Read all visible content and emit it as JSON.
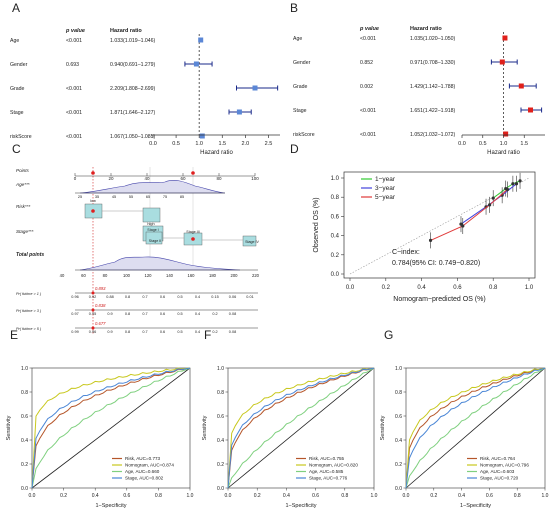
{
  "panel_letters": [
    "A",
    "B",
    "C",
    "D",
    "E",
    "F",
    "G"
  ],
  "forest_headers": {
    "p": "p value",
    "hr": "Hazard ratio"
  },
  "chart_data": [
    {
      "panel": "A",
      "type": "forest",
      "xlabel": "Hazard ratio",
      "xticks": [
        "0.0",
        "0.5",
        "1.0",
        "1.5",
        "2.0",
        "2.5"
      ],
      "xlim": [
        0,
        2.75
      ],
      "ref": 1,
      "rows": [
        {
          "label": "Age",
          "p": "<0.001",
          "hr_text": "1.033(1.019–1.046)",
          "hr": 1.033,
          "lo": 1.019,
          "hi": 1.046
        },
        {
          "label": "Gender",
          "p": "0.693",
          "hr_text": "0.940(0.691–1.279)",
          "hr": 0.94,
          "lo": 0.691,
          "hi": 1.279
        },
        {
          "label": "Grade",
          "p": "<0.001",
          "hr_text": "2.209(1.808–2.699)",
          "hr": 2.209,
          "lo": 1.808,
          "hi": 2.699
        },
        {
          "label": "Stage",
          "p": "<0.001",
          "hr_text": "1.871(1.646–2.127)",
          "hr": 1.871,
          "lo": 1.646,
          "hi": 2.127
        },
        {
          "label": "riskScore",
          "p": "<0.001",
          "hr_text": "1.067(1.050–1.085)",
          "hr": 1.067,
          "lo": 1.05,
          "hi": 1.085
        }
      ],
      "marker_color": "#5b87d6"
    },
    {
      "panel": "B",
      "type": "forest",
      "xlabel": "Hazard ratio",
      "xticks": [
        "0.0",
        "0.5",
        "1.0",
        "1.5"
      ],
      "xlim": [
        0,
        2.0
      ],
      "ref": 1,
      "rows": [
        {
          "label": "Age",
          "p": "<0.001",
          "hr_text": "1.035(1.020–1.050)",
          "hr": 1.035,
          "lo": 1.02,
          "hi": 1.05
        },
        {
          "label": "Gender",
          "p": "0.852",
          "hr_text": "0.971(0.708–1.330)",
          "hr": 0.971,
          "lo": 0.708,
          "hi": 1.33
        },
        {
          "label": "Grade",
          "p": "0.002",
          "hr_text": "1.429(1.142–1.788)",
          "hr": 1.429,
          "lo": 1.142,
          "hi": 1.788
        },
        {
          "label": "Stage",
          "p": "<0.001",
          "hr_text": "1.651(1.422–1.918)",
          "hr": 1.651,
          "lo": 1.422,
          "hi": 1.918
        },
        {
          "label": "riskScore",
          "p": "<0.001",
          "hr_text": "1.052(1.032–1.072)",
          "hr": 1.052,
          "lo": 1.032,
          "hi": 1.072
        }
      ],
      "marker_color": "#e0201b"
    },
    {
      "panel": "C",
      "type": "nomogram",
      "rows": {
        "points": "Points",
        "age": "Age***",
        "risk": "Risk***",
        "stage": "Stage***",
        "total": "Total points",
        "p1": "Pr( futime > 1 )",
        "p3": "Pr( futime > 3 )",
        "p5": "Pr( futime > 5 )"
      },
      "points_ticks": [
        "0",
        "20",
        "40",
        "60",
        "80",
        "100"
      ],
      "age_ticks": [
        "25",
        "35",
        "45",
        "55",
        "65",
        "75",
        "85"
      ],
      "risk_labels": [
        "low",
        "high"
      ],
      "stage_labels": [
        "Stage I",
        "Stage II",
        "Stage III",
        "Stage IV"
      ],
      "total_ticks": [
        "40",
        "60",
        "80",
        "100",
        "120",
        "140",
        "160",
        "180",
        "200",
        "220"
      ],
      "p1_ticks": [
        "0.96",
        "0.92",
        "0.88",
        "0.8",
        "0.7",
        "0.6",
        "0.5",
        "0.4",
        "0.15",
        "0.06",
        "0.01"
      ],
      "p3_ticks": [
        "0.97",
        "0.95",
        "0.9",
        "0.8",
        "0.7",
        "0.6",
        "0.5",
        "0.4",
        "0.2",
        "0.08"
      ],
      "p5_ticks": [
        "0.99",
        "0.96",
        "0.9",
        "0.8",
        "0.7",
        "0.6",
        "0.5",
        "0.4",
        "0.2",
        "0.08"
      ],
      "predicted": [
        "0.893",
        "0.838",
        "0.677"
      ]
    },
    {
      "panel": "D",
      "type": "calibration",
      "xlabel": "Nomogram−predicted OS (%)",
      "ylabel": "Observed OS (%)",
      "ticks": [
        "0.0",
        "0.2",
        "0.4",
        "0.6",
        "0.8",
        "1.0"
      ],
      "cindex_label": "C−index:",
      "cindex": "0.784(95% CI: 0.749−0.820)",
      "series": [
        {
          "name": "1−year",
          "color": "#33cc33",
          "points": [
            [
              0.8,
              0.79
            ],
            [
              0.87,
              0.89
            ],
            [
              0.91,
              0.94
            ],
            [
              0.95,
              0.97
            ]
          ]
        },
        {
          "name": "3−year",
          "color": "#4444dd",
          "points": [
            [
              0.62,
              0.52
            ],
            [
              0.76,
              0.7
            ],
            [
              0.85,
              0.82
            ],
            [
              0.93,
              0.94
            ]
          ]
        },
        {
          "name": "5−year",
          "color": "#e03a3a",
          "points": [
            [
              0.45,
              0.35
            ],
            [
              0.63,
              0.5
            ],
            [
              0.78,
              0.72
            ],
            [
              0.88,
              0.88
            ]
          ]
        }
      ]
    },
    {
      "panel": "E",
      "type": "roc",
      "xlabel": "1−Specificity",
      "ylabel": "Sensitivity",
      "ticks": [
        "0.0",
        "0.2",
        "0.4",
        "0.6",
        "0.8",
        "1.0"
      ],
      "series": [
        {
          "name": "Risk, AUC=0.773",
          "color": "#b5562a",
          "auc": 0.773
        },
        {
          "name": "Nomogram, AUC=0.874",
          "color": "#c8c81e",
          "auc": 0.874
        },
        {
          "name": "Age, AUC=0.660",
          "color": "#7fd07f",
          "auc": 0.66
        },
        {
          "name": "Stage, AUC=0.802",
          "color": "#4a86d6",
          "auc": 0.802
        }
      ]
    },
    {
      "panel": "F",
      "type": "roc",
      "xlabel": "1−Specificity",
      "ylabel": "Sensitivity",
      "ticks": [
        "0.0",
        "0.2",
        "0.4",
        "0.6",
        "0.8",
        "1.0"
      ],
      "series": [
        {
          "name": "Risk, AUC=0.755",
          "color": "#b5562a",
          "auc": 0.755
        },
        {
          "name": "Nomogram, AUC=0.820",
          "color": "#c8c81e",
          "auc": 0.82
        },
        {
          "name": "Age, AUC=0.585",
          "color": "#7fd07f",
          "auc": 0.585
        },
        {
          "name": "Stage, AUC=0.776",
          "color": "#4a86d6",
          "auc": 0.776
        }
      ]
    },
    {
      "panel": "G",
      "type": "roc",
      "xlabel": "1−Specificity",
      "ylabel": "Sensitivity",
      "ticks": [
        "0.0",
        "0.2",
        "0.4",
        "0.6",
        "0.8",
        "1.0"
      ],
      "series": [
        {
          "name": "Risk, AUC=0.764",
          "color": "#b5562a",
          "auc": 0.764
        },
        {
          "name": "Nomogram, AUC=0.796",
          "color": "#c8c81e",
          "auc": 0.796
        },
        {
          "name": "Age, AUC=0.603",
          "color": "#7fd07f",
          "auc": 0.603
        },
        {
          "name": "Stage, AUC=0.720",
          "color": "#4a86d6",
          "auc": 0.72
        }
      ]
    }
  ]
}
